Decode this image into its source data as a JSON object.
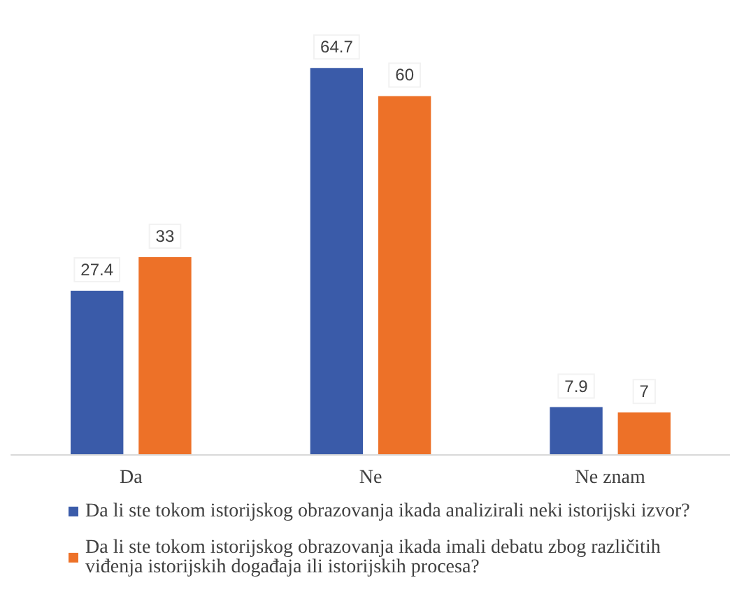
{
  "chart_data": {
    "type": "bar",
    "categories": [
      "Da",
      "Ne",
      "Ne znam"
    ],
    "series": [
      {
        "name": "Da li ste tokom istorijskog obrazovanja ikada analizirali neki istorijski izvor?",
        "color": "#3a5ba9",
        "values": [
          27.4,
          64.7,
          7.9
        ]
      },
      {
        "name": "Da li ste tokom istorijskog obrazovanja ikada imali debatu zbog različitih viđenja istorijskih događaja ili istorijskih procesa?",
        "color": "#ed7128",
        "values": [
          33,
          60,
          7
        ]
      }
    ],
    "data_labels": true,
    "legend": "bottom",
    "grid": false
  }
}
